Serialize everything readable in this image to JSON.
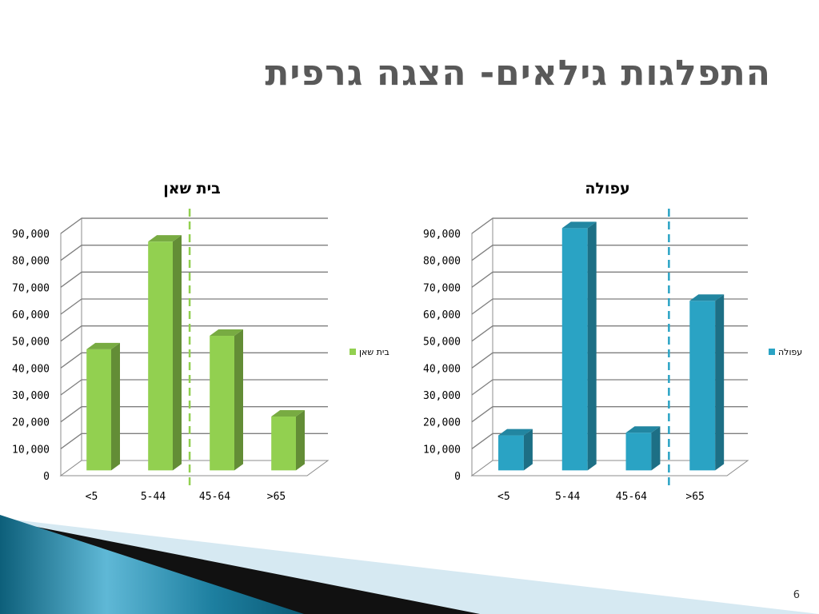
{
  "slide": {
    "title": "התפלגות גילאים- הצגה גרפית",
    "page_number": "6"
  },
  "colors": {
    "left_series": "#92d050",
    "right_series": "#2aa3c4"
  },
  "chart_data": [
    {
      "type": "bar",
      "title": "בית שאן",
      "categories": [
        "<5",
        "5-44",
        "45-64",
        ">65"
      ],
      "series": [
        {
          "name": "בית שאן",
          "values": [
            45000,
            85000,
            50000,
            20000
          ]
        }
      ],
      "yticks": [
        "0",
        "10,000",
        "20,000",
        "30,000",
        "40,000",
        "50,000",
        "60,000",
        "70,000",
        "80,000",
        "90,000"
      ],
      "ylim": [
        0,
        90000
      ],
      "grid": true,
      "legend": "right",
      "divider_after_category": 1
    },
    {
      "type": "bar",
      "title": "עפולה",
      "categories": [
        "<5",
        "5-44",
        "45-64",
        ">65"
      ],
      "series": [
        {
          "name": "עפולה",
          "values": [
            13000,
            90000,
            14000,
            63000
          ]
        }
      ],
      "yticks": [
        "0",
        "10,000",
        "20,000",
        "30,000",
        "40,000",
        "50,000",
        "60,000",
        "70,000",
        "80,000",
        "90,000"
      ],
      "ylim": [
        0,
        90000
      ],
      "grid": true,
      "legend": "right",
      "divider_after_category": 2
    }
  ]
}
